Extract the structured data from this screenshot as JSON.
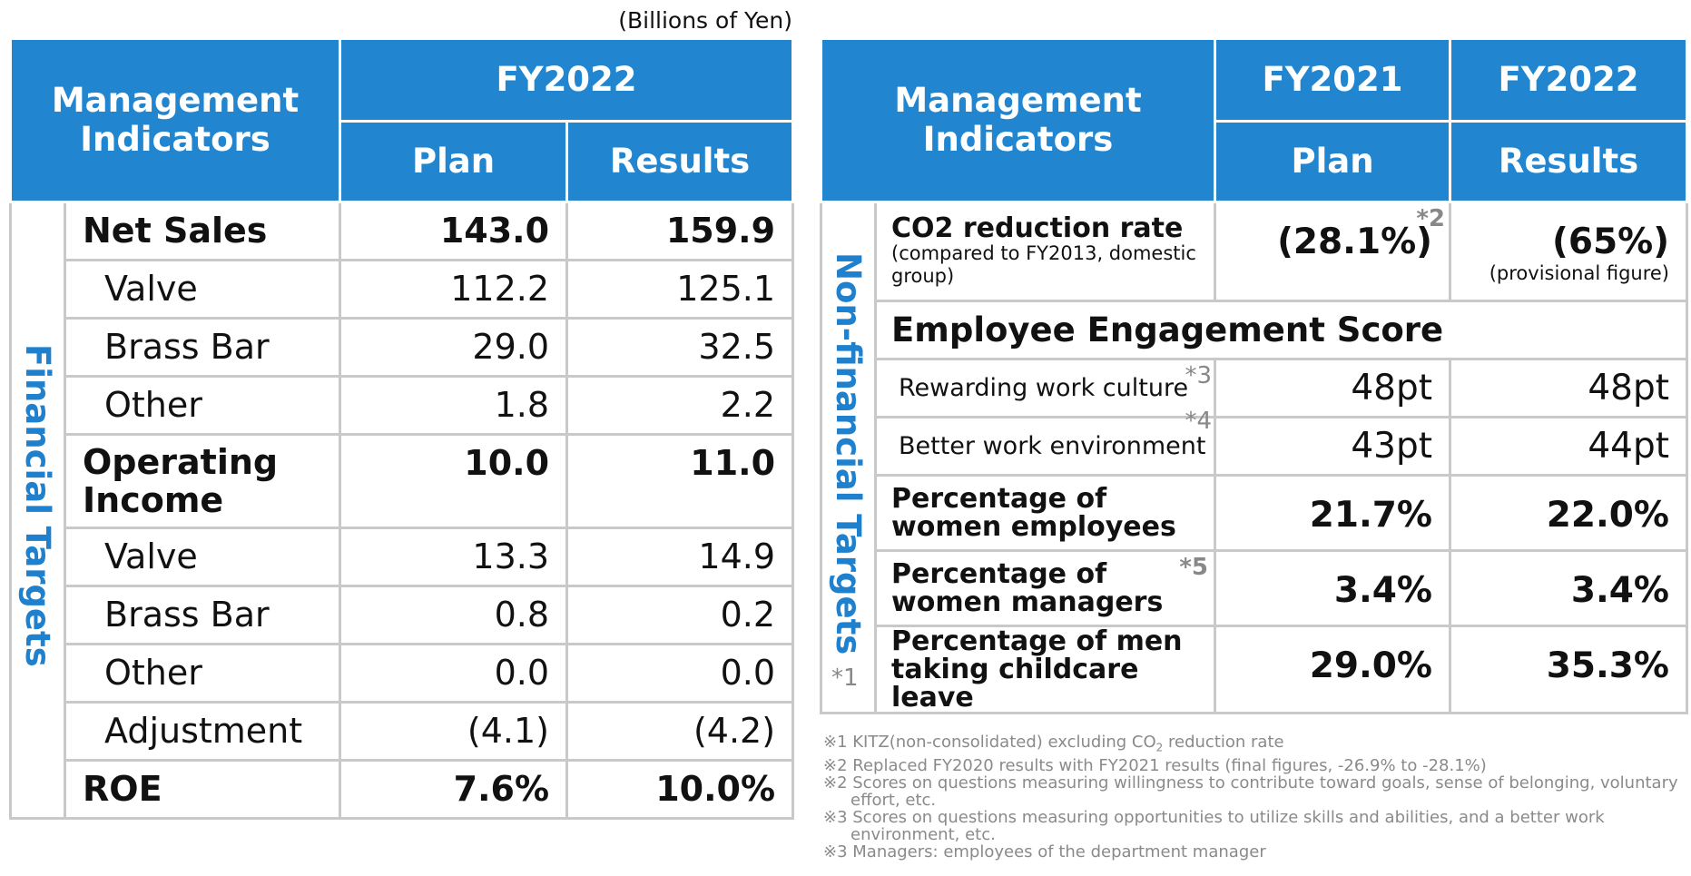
{
  "unit": "(Billions of Yen)",
  "financial": {
    "side_label": "Financial Targets",
    "header": {
      "indicators": "Management Indicators",
      "year": "FY2022",
      "plan": "Plan",
      "results": "Results"
    },
    "rows": [
      {
        "label": "Net Sales",
        "plan": "143.0",
        "results": "159.9"
      },
      {
        "label": "Valve",
        "plan": "112.2",
        "results": "125.1"
      },
      {
        "label": "Brass Bar",
        "plan": "29.0",
        "results": "32.5"
      },
      {
        "label": "Other",
        "plan": "1.8",
        "results": "2.2"
      },
      {
        "label": "Operating Income",
        "plan": "10.0",
        "results": "11.0"
      },
      {
        "label": "Valve",
        "plan": "13.3",
        "results": "14.9"
      },
      {
        "label": "Brass Bar",
        "plan": "0.8",
        "results": "0.2"
      },
      {
        "label": "Other",
        "plan": "0.0",
        "results": "0.0"
      },
      {
        "label": "Adjustment",
        "plan": "(4.1)",
        "results": "(4.2)"
      },
      {
        "label": "ROE",
        "plan": "7.6%",
        "results": "10.0%"
      }
    ]
  },
  "nonfinancial": {
    "side_label": "Non-financial Targets",
    "side_note": "*1",
    "header": {
      "indicators": "Management Indicators",
      "year1": "FY2021",
      "year2": "FY2022",
      "plan": "Plan",
      "results": "Results"
    },
    "co2": {
      "label": "CO2 reduction rate",
      "note": "(compared to FY2013, domestic group)",
      "plan": "(28.1%)",
      "plan_note": "*2",
      "results": "(65%)",
      "results_note": "(provisional figure)"
    },
    "engagement": {
      "label": "Employee Engagement Score"
    },
    "rewarding": {
      "label": "Rewarding work culture",
      "note": "*3",
      "plan": "48pt",
      "results": "48pt"
    },
    "environment": {
      "label": "Better work environment",
      "note": "*4",
      "plan": "43pt",
      "results": "44pt"
    },
    "women_emp": {
      "label": "Percentage of women employees",
      "plan": "21.7%",
      "results": "22.0%"
    },
    "women_mgr": {
      "label": "Percentage of women managers",
      "note": "*5",
      "plan": "3.4%",
      "results": "3.4%"
    },
    "men_leave": {
      "label": "Percentage of men taking childcare leave",
      "plan": "29.0%",
      "results": "35.3%"
    }
  },
  "footnotes": {
    "n1_prefix": "※1 KITZ(non-consolidated) excluding CO",
    "n1_sub": "2",
    "n1_suffix": " reduction rate",
    "n2": "※2 Replaced FY2020 results with FY2021 results (final figures, -26.9% to -28.1%)",
    "n3": "※2 Scores on questions measuring willingness to contribute toward goals, sense of belonging, voluntary effort, etc.",
    "n4": "※3 Scores on questions measuring opportunities to utilize skills and abilities, and a better work environment, etc.",
    "n5": "※3 Managers: employees of the department manager"
  }
}
